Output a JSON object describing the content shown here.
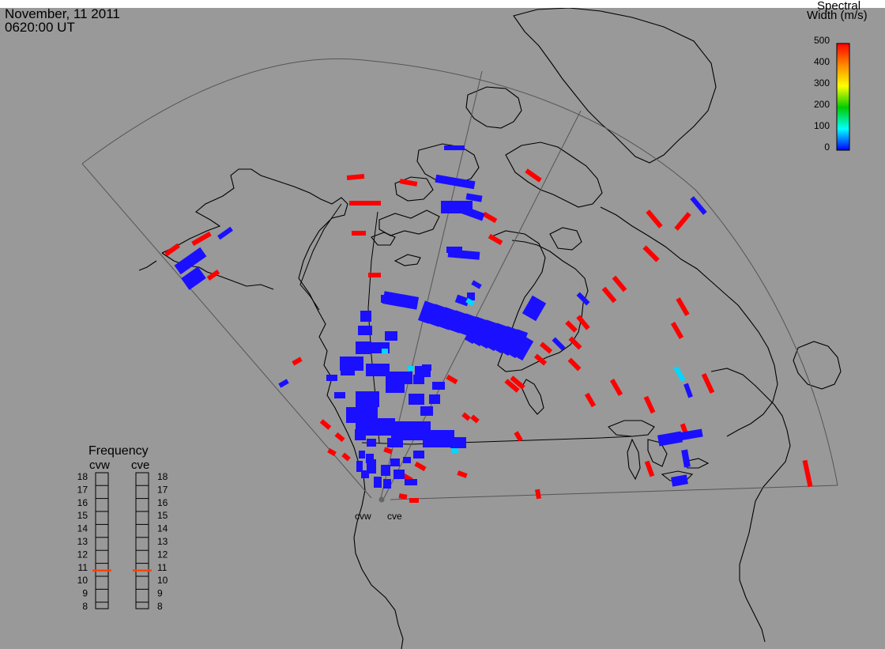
{
  "header": {
    "date": "November, 11 2011",
    "time": "0620:00 UT"
  },
  "colorbar": {
    "title_line1": "Spectral",
    "title_line2": "Width (m/s)",
    "ticks": [
      "500",
      "400",
      "300",
      "200",
      "100",
      "0"
    ],
    "min": 0,
    "max": 500,
    "colors": [
      "#ff0000",
      "#ff8800",
      "#ffff00",
      "#00cc00",
      "#00ffff",
      "#0000ff"
    ]
  },
  "frequency_panel": {
    "title": "Frequency",
    "radars": [
      {
        "id": "cvw",
        "value": 10.7
      },
      {
        "id": "cve",
        "value": 10.7
      }
    ],
    "scale_labels": [
      "18",
      "17",
      "16",
      "15",
      "14",
      "13",
      "12",
      "11",
      "10",
      "9",
      "8"
    ],
    "min": 8,
    "max": 18,
    "marker_color": "#ff4400"
  },
  "radar_sites": {
    "west": "cvw",
    "east": "cve"
  },
  "colors": {
    "map_background": "#999999",
    "coastline": "#000000",
    "fov": "#555555",
    "low_width": "#1a10ff",
    "high_width": "#ff0000",
    "mid_width": "#00d8ff"
  }
}
